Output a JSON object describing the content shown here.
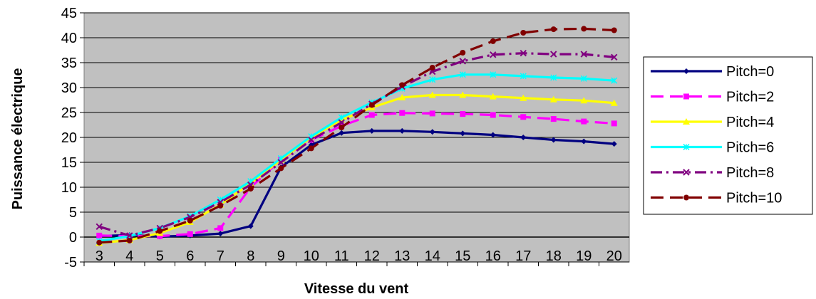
{
  "chart_data": {
    "type": "line",
    "title": "",
    "xlabel": "Vitesse du vent",
    "ylabel": "Puissance électrique",
    "x": [
      3,
      4,
      5,
      6,
      7,
      8,
      9,
      10,
      11,
      12,
      13,
      14,
      15,
      16,
      17,
      18,
      19,
      20
    ],
    "ylim": [
      -5,
      45
    ],
    "yticks": [
      -5,
      0,
      5,
      10,
      15,
      20,
      25,
      30,
      35,
      40,
      45
    ],
    "grid": true,
    "legend_position": "right",
    "plot_background": "#c0c0c0",
    "series": [
      {
        "name": "Pitch=0",
        "color": "#000080",
        "dash": "solid",
        "marker": "diamond",
        "values": [
          0.2,
          0.4,
          0.1,
          0.3,
          0.7,
          2.2,
          14.0,
          18.5,
          20.9,
          21.3,
          21.3,
          21.1,
          20.8,
          20.5,
          20.0,
          19.5,
          19.2,
          18.7
        ]
      },
      {
        "name": "Pitch=2",
        "color": "#ff00ff",
        "dash": "longdash",
        "marker": "square",
        "values": [
          0.3,
          0.2,
          0.2,
          0.6,
          1.8,
          10.0,
          15.5,
          19.5,
          22.3,
          24.5,
          24.9,
          24.8,
          24.7,
          24.5,
          24.1,
          23.7,
          23.2,
          22.8
        ]
      },
      {
        "name": "Pitch=4",
        "color": "#ffff00",
        "dash": "solid",
        "marker": "triangle",
        "values": [
          -1.2,
          -0.6,
          0.8,
          3.0,
          6.5,
          10.8,
          15.5,
          20.0,
          23.5,
          26.0,
          28.0,
          28.5,
          28.5,
          28.2,
          27.9,
          27.6,
          27.4,
          26.9
        ]
      },
      {
        "name": "Pitch=6",
        "color": "#00ffff",
        "dash": "solid",
        "marker": "star",
        "values": [
          -0.8,
          0.2,
          1.8,
          4.2,
          7.5,
          11.2,
          15.8,
          20.2,
          24.0,
          27.0,
          29.8,
          31.6,
          32.6,
          32.6,
          32.3,
          32.0,
          31.8,
          31.4
        ]
      },
      {
        "name": "Pitch=8",
        "color": "#800080",
        "dash": "dashdot",
        "marker": "x",
        "values": [
          2.1,
          0.3,
          1.8,
          4.0,
          7.0,
          10.5,
          15.0,
          19.5,
          23.0,
          26.7,
          30.2,
          33.2,
          35.3,
          36.6,
          36.9,
          36.7,
          36.7,
          36.1
        ]
      },
      {
        "name": "Pitch=10",
        "color": "#800000",
        "dash": "longdash",
        "marker": "circle",
        "values": [
          -1.1,
          -0.7,
          1.2,
          3.3,
          6.3,
          9.7,
          13.8,
          17.8,
          22.0,
          26.5,
          30.5,
          34.0,
          37.0,
          39.3,
          41.0,
          41.7,
          41.8,
          41.5
        ]
      }
    ]
  }
}
